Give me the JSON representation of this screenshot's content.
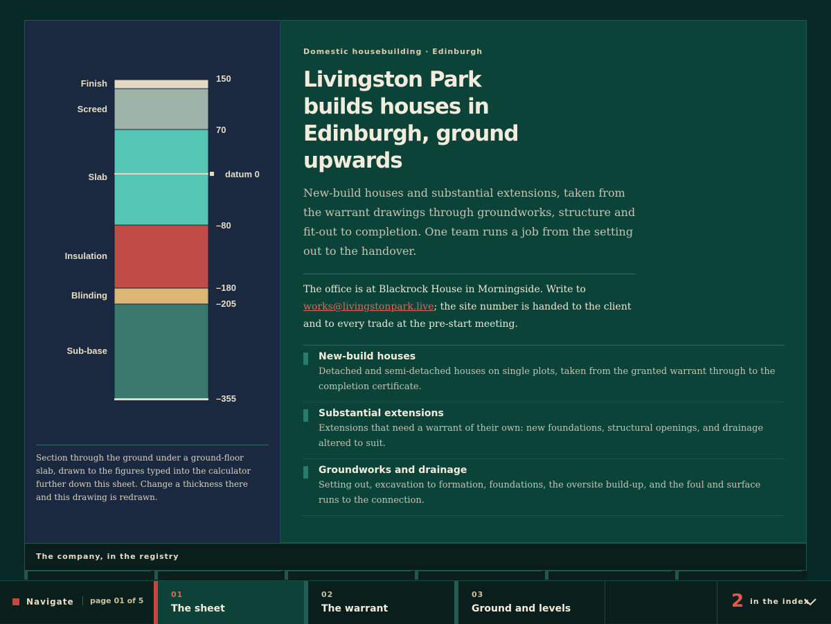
{
  "section_drawing": {
    "layers": [
      {
        "name": "Finish",
        "color": "#e4d9c2"
      },
      {
        "name": "Screed",
        "color": "#9eb3a7"
      },
      {
        "name": "Slab",
        "color": "#54c6b3"
      },
      {
        "name": "Insulation",
        "color": "#c04b47"
      },
      {
        "name": "Blinding",
        "color": "#ddb676"
      },
      {
        "name": "Sub-base",
        "color": "#3b796e"
      }
    ],
    "levels": [
      "150",
      "70",
      "–80",
      "–180",
      "–205",
      "–355"
    ],
    "datum_label": "datum 0",
    "caption": "Section through the ground under a ground-floor slab, drawn to the figures typed into the calculator further down this sheet. Change a thickness there and this drawing is redrawn."
  },
  "hero": {
    "eyebrow": "Domestic housebuilding · Edinburgh",
    "title": "Livingston Park builds houses in Edinburgh, ground upwards",
    "lede": "New-build houses and substantial extensions, taken from the warrant drawings through groundworks, structure and fit-out to completion. One team runs a job from the setting out to the handover.",
    "office_before": "The office is at Blackrock House in Morningside. Write to ",
    "office_email": "works@livingstonpark.live",
    "office_after": "; the site number is handed to the client and to every trade at the pre-start meeting."
  },
  "services": [
    {
      "title": "New-build houses",
      "text": "Detached and semi-detached houses on single plots, taken from the granted warrant through to the completion certificate."
    },
    {
      "title": "Substantial extensions",
      "text": "Extensions that need a warrant of their own: new foundations, structural openings, and drainage altered to suit."
    },
    {
      "title": "Groundworks and drainage",
      "text": "Setting out, excavation to formation, foundations, the oversite build-up, and the foul and surface runs to the connection."
    }
  ],
  "registry": {
    "label": "The company, in the registry"
  },
  "nav": {
    "label": "Navigate",
    "page": "page 01 of 5",
    "tabs": [
      {
        "num": "01",
        "name": "The sheet"
      },
      {
        "num": "02",
        "name": "The warrant"
      },
      {
        "num": "03",
        "name": "Ground and levels"
      }
    ],
    "index_count": "2",
    "index_label": "in the index"
  },
  "colors": {
    "accent": "#c8463f",
    "link": "#e2675a",
    "panel_dark": "#1a2840",
    "panel_green": "#0b4338"
  }
}
